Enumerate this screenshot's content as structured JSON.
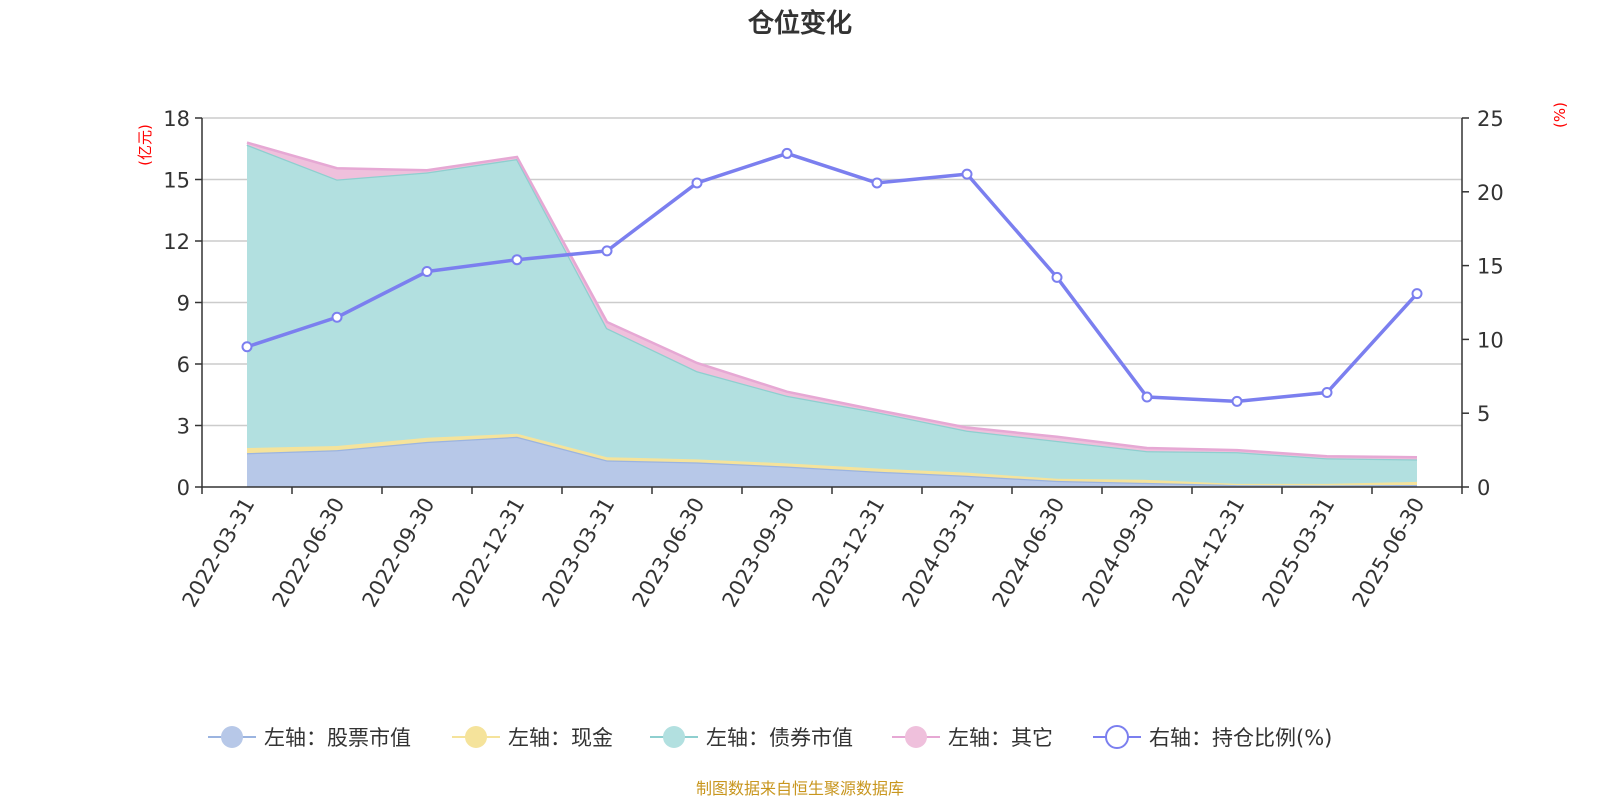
{
  "chart_data": {
    "type": "area",
    "title": "仓位变化",
    "categories": [
      "2022-03-31",
      "2022-06-30",
      "2022-09-30",
      "2022-12-31",
      "2023-03-31",
      "2023-06-30",
      "2023-09-30",
      "2023-12-31",
      "2024-03-31",
      "2024-06-30",
      "2024-09-30",
      "2024-12-31",
      "2025-03-31",
      "2025-06-30"
    ],
    "left_axis": {
      "label": "(亿元)",
      "ylim": [
        0,
        18
      ],
      "ticks": [
        "0",
        "3",
        "6",
        "9",
        "12",
        "15",
        "18"
      ]
    },
    "right_axis": {
      "label": "(%)",
      "ylim": [
        0,
        25
      ],
      "ticks": [
        "0",
        "5",
        "10",
        "15",
        "20",
        "25"
      ]
    },
    "stacked_series": [
      {
        "name": "左轴：股票市值",
        "color": "#9bb4e0",
        "fill": "#b7c8e8",
        "values": [
          1.65,
          1.8,
          2.2,
          2.45,
          1.3,
          1.2,
          1.0,
          0.75,
          0.55,
          0.3,
          0.2,
          0.1,
          0.08,
          0.1
        ]
      },
      {
        "name": "左轴：现金",
        "color": "#f5e39b",
        "fill": "#f5e39b",
        "values": [
          0.25,
          0.2,
          0.2,
          0.15,
          0.15,
          0.15,
          0.15,
          0.15,
          0.15,
          0.1,
          0.15,
          0.05,
          0.07,
          0.15
        ]
      },
      {
        "name": "左轴：债券市值",
        "color": "#8ecfcf",
        "fill": "#b2e0e0",
        "values": [
          14.8,
          13.0,
          12.95,
          13.4,
          6.3,
          4.3,
          3.3,
          2.75,
          2.05,
          1.85,
          1.4,
          1.55,
          1.25,
          1.1
        ]
      },
      {
        "name": "左轴：其它",
        "color": "#e6a8d4",
        "fill": "#efc0dc",
        "values": [
          0.1,
          0.55,
          0.1,
          0.1,
          0.3,
          0.4,
          0.2,
          0.1,
          0.15,
          0.2,
          0.15,
          0.1,
          0.1,
          0.1
        ]
      }
    ],
    "line_series": {
      "name": "右轴：持仓比例(%)",
      "color": "#7b7fef",
      "values": [
        9.5,
        11.5,
        14.6,
        15.4,
        16.0,
        20.6,
        22.6,
        20.6,
        21.2,
        14.2,
        6.1,
        5.8,
        6.4,
        13.1
      ]
    },
    "grid": true,
    "legend": "bottom"
  },
  "source_note": "制图数据来自恒生聚源数据库"
}
